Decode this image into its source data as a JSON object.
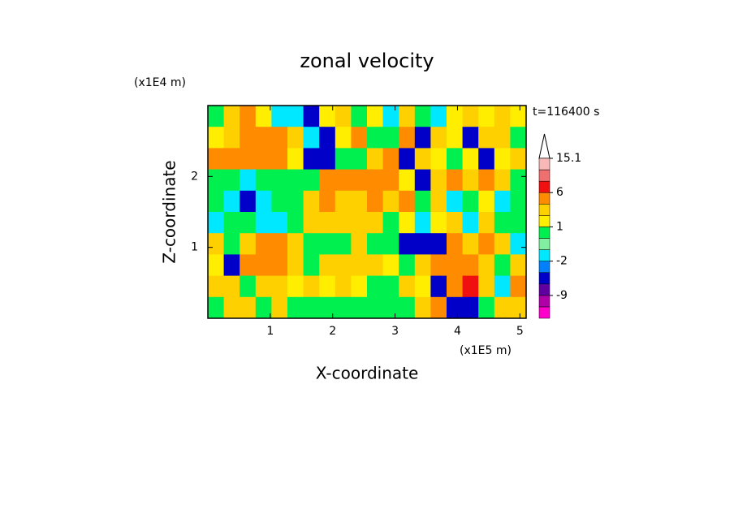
{
  "chart_data": {
    "type": "contour",
    "title": "zonal velocity",
    "xlabel": "X-coordinate",
    "ylabel": "Z-coordinate",
    "x_unit": "(x1E5 m)",
    "y_unit": "(x1E4 m)",
    "time_label": "t=116400 s",
    "xlim": [
      0,
      5.1
    ],
    "ylim": [
      0,
      3
    ],
    "xticks": [
      1,
      2,
      3,
      4,
      5
    ],
    "yticks": [
      1,
      2
    ],
    "z": [
      [
        0.5,
        2,
        4,
        1.5,
        -1.5,
        -2,
        -5,
        1.5,
        2,
        0.5,
        1.5,
        -1.5,
        2,
        0.5,
        -2,
        1.5,
        2,
        1.5,
        2,
        1.5
      ],
      [
        1.5,
        2,
        4,
        5,
        4,
        2,
        -1.5,
        -4,
        1.5,
        3,
        0.5,
        0.5,
        4,
        -4,
        2,
        1.5,
        -4,
        2,
        2,
        0.5
      ],
      [
        3,
        4,
        4,
        5,
        4,
        1.5,
        -4,
        -5,
        0.5,
        0.5,
        2,
        4,
        -4,
        2,
        1.5,
        0.5,
        1.5,
        -4,
        1.5,
        2
      ],
      [
        0.5,
        0.5,
        -1.5,
        0.5,
        0.5,
        0.5,
        0.5,
        4,
        5,
        4,
        3,
        4,
        1.5,
        -4,
        2,
        4,
        2,
        4,
        2,
        0.5
      ],
      [
        0.5,
        -1.5,
        -4,
        -1.5,
        0.5,
        0.5,
        2,
        3,
        2,
        2,
        4,
        2,
        3,
        0.5,
        2,
        -1.5,
        0.5,
        1.5,
        -1.5,
        0.5
      ],
      [
        -1.5,
        0.5,
        0.5,
        -1.5,
        -1.5,
        0.5,
        2,
        2,
        2,
        2,
        2,
        0.5,
        1.5,
        -1.5,
        1.5,
        2,
        -1.5,
        2,
        0.5,
        0.5
      ],
      [
        2,
        0.5,
        2,
        3,
        3,
        2,
        0.5,
        0.5,
        0.5,
        2,
        0.5,
        0.5,
        -4,
        -4,
        -4,
        4,
        2,
        4,
        2,
        -1.5
      ],
      [
        1.5,
        -4,
        3,
        3,
        3,
        2,
        0.5,
        2,
        2,
        2,
        2,
        1.5,
        0.5,
        2,
        4,
        4,
        3,
        2,
        0.5,
        2
      ],
      [
        2,
        2,
        0.5,
        2,
        2,
        1.5,
        2,
        1.5,
        2,
        1.5,
        0.5,
        0.5,
        2,
        1.5,
        -5,
        4,
        7,
        2,
        -1.5,
        4
      ],
      [
        0.5,
        2,
        2,
        0.5,
        2,
        0.5,
        0.5,
        0.5,
        0.5,
        0.5,
        0.5,
        0.5,
        0.5,
        2,
        5,
        -5,
        -4,
        0.5,
        2,
        2
      ]
    ],
    "colorbar": {
      "bounds": [
        -15,
        -12,
        -9,
        -6,
        -3,
        -2,
        -1,
        0,
        1,
        2,
        3,
        6,
        9,
        12,
        15.1
      ],
      "colors": [
        "#ff00cc",
        "#b000a8",
        "#6000a0",
        "#0000c8",
        "#0080ff",
        "#00e8ff",
        "#80f0a0",
        "#00f050",
        "#ffee00",
        "#ffd000",
        "#ff8c00",
        "#f01010",
        "#f07070",
        "#f8b8b8"
      ],
      "ticks": [
        15.1,
        6,
        1,
        -2,
        -9
      ]
    }
  }
}
